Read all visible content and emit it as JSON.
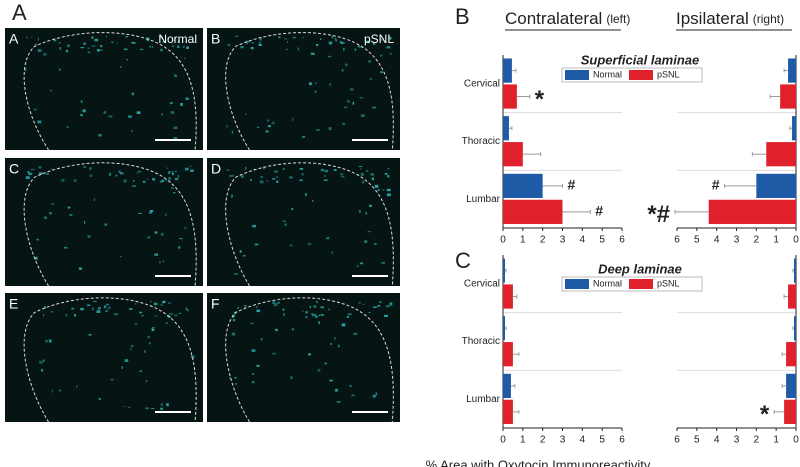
{
  "images": {
    "panel_label": "A",
    "tiles": [
      {
        "label": "A",
        "condition": "Normal"
      },
      {
        "label": "B",
        "condition": "pSNL"
      },
      {
        "label": "C"
      },
      {
        "label": "D"
      },
      {
        "label": "E"
      },
      {
        "label": "F"
      }
    ]
  },
  "column_headers": [
    {
      "text": "Contralateral",
      "note": "(left)"
    },
    {
      "text": "Ipsilateral",
      "note": "(right)"
    }
  ],
  "x_label": "% Area with Oxytocin Immunoreactivity",
  "chart_data": [
    {
      "type": "bar",
      "panel_label": "B",
      "title": "Superficial laminae",
      "categories": [
        "Cervical",
        "Thoracic",
        "Lumbar"
      ],
      "xlim": [
        0,
        6
      ],
      "xticks": [
        0,
        1,
        2,
        3,
        4,
        5,
        6
      ],
      "series": [
        {
          "name": "Normal",
          "color": "#1f5aa6",
          "contralateral": {
            "values": [
              0.45,
              0.3,
              2.0
            ],
            "errors": [
              0.2,
              0.15,
              1.0
            ],
            "annotations": [
              null,
              null,
              "#"
            ]
          },
          "ipsilateral": {
            "values": [
              0.4,
              0.2,
              2.0
            ],
            "errors": [
              0.2,
              0.1,
              1.6
            ],
            "annotations": [
              null,
              null,
              "#"
            ]
          }
        },
        {
          "name": "pSNL",
          "color": "#e0202a",
          "contralateral": {
            "values": [
              0.7,
              1.0,
              3.0
            ],
            "errors": [
              0.65,
              0.9,
              1.4
            ],
            "annotations": [
              "*",
              null,
              "#"
            ]
          },
          "ipsilateral": {
            "values": [
              0.8,
              1.5,
              4.4
            ],
            "errors": [
              0.5,
              0.7,
              1.7
            ],
            "annotations": [
              null,
              null,
              "*#"
            ]
          }
        }
      ]
    },
    {
      "type": "bar",
      "panel_label": "C",
      "title": "Deep laminae",
      "categories": [
        "Cervical",
        "Thoracic",
        "Lumbar"
      ],
      "xlim": [
        0,
        6
      ],
      "xticks": [
        0,
        1,
        2,
        3,
        4,
        5,
        6
      ],
      "series": [
        {
          "name": "Normal",
          "color": "#1f5aa6",
          "contralateral": {
            "values": [
              0.1,
              0.1,
              0.4
            ],
            "errors": [
              0.05,
              0.05,
              0.2
            ],
            "annotations": [
              null,
              null,
              null
            ]
          },
          "ipsilateral": {
            "values": [
              0.1,
              0.1,
              0.5
            ],
            "errors": [
              0.05,
              0.05,
              0.2
            ],
            "annotations": [
              null,
              null,
              null
            ]
          }
        },
        {
          "name": "pSNL",
          "color": "#e0202a",
          "contralateral": {
            "values": [
              0.5,
              0.5,
              0.5
            ],
            "errors": [
              0.2,
              0.3,
              0.3
            ],
            "annotations": [
              null,
              null,
              null
            ]
          },
          "ipsilateral": {
            "values": [
              0.4,
              0.5,
              0.6
            ],
            "errors": [
              0.2,
              0.2,
              0.5
            ],
            "annotations": [
              null,
              null,
              "*"
            ]
          }
        }
      ]
    }
  ]
}
